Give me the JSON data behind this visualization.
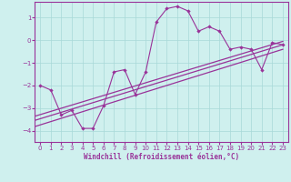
{
  "xlabel": "Windchill (Refroidissement éolien,°C)",
  "bg_color": "#cff0ee",
  "grid_color": "#a8d8d8",
  "line_color": "#993399",
  "spine_color": "#993399",
  "hours": [
    0,
    1,
    2,
    3,
    4,
    5,
    6,
    7,
    8,
    9,
    10,
    11,
    12,
    13,
    14,
    15,
    16,
    17,
    18,
    19,
    20,
    21,
    22,
    23
  ],
  "windchill": [
    -2.0,
    -2.2,
    -3.3,
    -3.1,
    -3.9,
    -3.9,
    -2.9,
    -1.4,
    -1.3,
    -2.4,
    -1.4,
    0.8,
    1.4,
    1.5,
    1.3,
    0.4,
    0.6,
    0.4,
    -0.4,
    -0.3,
    -0.4,
    -1.3,
    -0.1,
    -0.2
  ],
  "trend_lines": [
    [
      -2.1,
      -4.05,
      23,
      -0.4
    ],
    [
      -1.95,
      -3.75,
      23,
      -0.2
    ],
    [
      -1.85,
      -3.55,
      23,
      -0.05
    ]
  ],
  "ylim": [
    -4.5,
    1.7
  ],
  "xlim": [
    -0.5,
    23.5
  ],
  "yticks": [
    -4,
    -3,
    -2,
    -1,
    0,
    1
  ],
  "xticks": [
    0,
    1,
    2,
    3,
    4,
    5,
    6,
    7,
    8,
    9,
    10,
    11,
    12,
    13,
    14,
    15,
    16,
    17,
    18,
    19,
    20,
    21,
    22,
    23
  ]
}
